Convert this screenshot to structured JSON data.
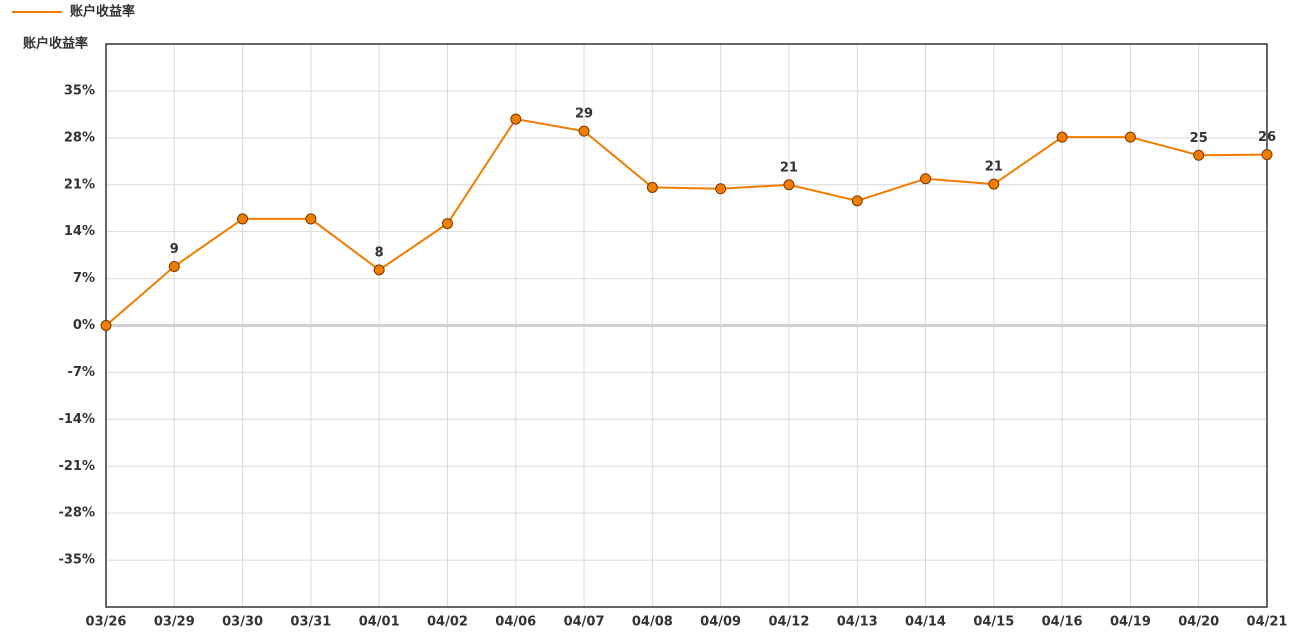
{
  "chart_data": {
    "type": "line",
    "ylabel": "账户收益率",
    "categories": [
      "03/26",
      "03/29",
      "03/30",
      "03/31",
      "04/01",
      "04/02",
      "04/06",
      "04/07",
      "04/08",
      "04/09",
      "04/12",
      "04/13",
      "04/14",
      "04/15",
      "04/16",
      "04/19",
      "04/20",
      "04/21"
    ],
    "series": [
      {
        "name": "账户收益率",
        "color": "#f07d00",
        "values": [
          0,
          8.8,
          15.9,
          15.9,
          8.3,
          15.2,
          30.8,
          29.0,
          20.6,
          20.4,
          21.0,
          18.6,
          21.9,
          21.1,
          28.1,
          28.1,
          25.4,
          25.5
        ],
        "value_labels": [
          null,
          "9",
          null,
          null,
          "8",
          null,
          null,
          "29",
          null,
          null,
          "21",
          null,
          null,
          "21",
          null,
          null,
          "25",
          "26"
        ]
      }
    ],
    "ylim": [
      -42,
      42
    ],
    "yticks": [
      {
        "value": -35,
        "label": "-35%"
      },
      {
        "value": -28,
        "label": "-28%"
      },
      {
        "value": -21,
        "label": "-21%"
      },
      {
        "value": -14,
        "label": "-14%"
      },
      {
        "value": -7,
        "label": "-7%"
      },
      {
        "value": 0,
        "label": "0%"
      },
      {
        "value": 7,
        "label": "7%"
      },
      {
        "value": 14,
        "label": "14%"
      },
      {
        "value": 21,
        "label": "21%"
      },
      {
        "value": 28,
        "label": "28%"
      },
      {
        "value": 35,
        "label": "35%"
      }
    ],
    "grid": true,
    "legend": "top-left"
  }
}
